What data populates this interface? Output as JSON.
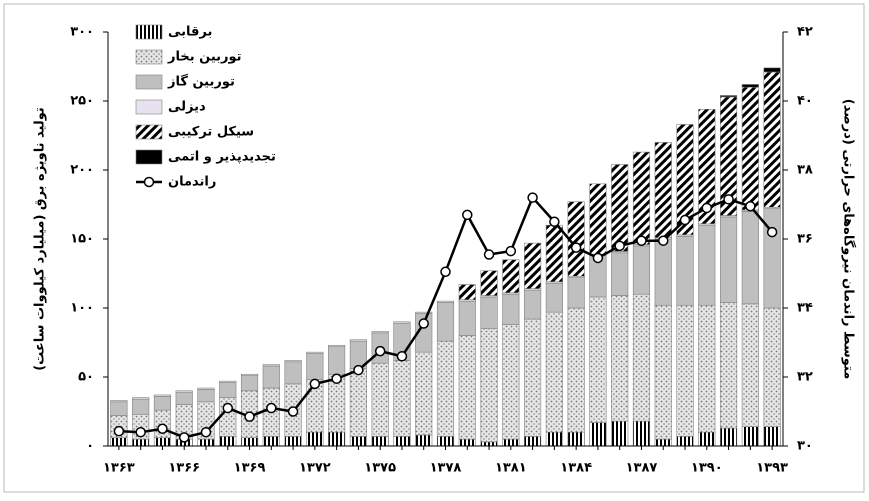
{
  "chart_data": {
    "type": "bar",
    "stacked": true,
    "x_label": null,
    "y_label": "تولید ناویژه برق (میلیارد کیلووات ساعت)",
    "y2_label": "متوسط راندمان نیروگاه‌های حرارتی (درصد)",
    "categories": [
      "۱۳۶۳",
      null,
      null,
      "۱۳۶۶",
      null,
      null,
      "۱۳۶۹",
      null,
      null,
      "۱۳۷۲",
      null,
      null,
      "۱۳۷۵",
      null,
      null,
      "۱۳۷۸",
      null,
      null,
      "۱۳۸۱",
      null,
      null,
      "۱۳۸۴",
      null,
      null,
      "۱۳۸۷",
      null,
      null,
      "۱۳۹۰",
      null,
      null,
      "۱۳۹۳"
    ],
    "series": [
      {
        "name": "برقابی",
        "color": "#000000",
        "values": [
          6,
          5,
          6,
          5,
          5,
          7,
          6,
          7,
          7,
          10,
          10,
          7,
          7,
          7,
          8,
          7,
          5,
          3,
          5,
          7,
          10,
          10,
          17,
          18,
          18,
          5,
          7,
          10,
          13,
          14,
          14
        ]
      },
      {
        "name": "توربین بخار",
        "color": "#a6a6a6",
        "values": [
          16,
          18,
          20,
          25,
          27,
          28,
          34,
          35,
          38,
          38,
          42,
          49,
          53,
          55,
          60,
          69,
          75,
          82,
          83,
          85,
          87,
          90,
          91,
          91,
          92,
          97,
          95,
          92,
          91,
          89,
          86
        ]
      },
      {
        "name": "توربین گاز",
        "color": "#bfbfbf",
        "values": [
          10,
          11,
          10,
          9,
          9,
          11,
          11,
          16,
          16,
          19,
          20,
          20,
          22,
          27,
          28,
          28,
          25,
          23,
          22,
          21,
          21,
          22,
          30,
          31,
          35,
          48,
          50,
          58,
          62,
          67,
          72
        ]
      },
      {
        "name": "دیزلی",
        "color": "#e8e2f0",
        "values": [
          1,
          1,
          1,
          1,
          1,
          1,
          1,
          1,
          1,
          1,
          1,
          1,
          1,
          1,
          1,
          1,
          1,
          1,
          1,
          1,
          1,
          1,
          1,
          1,
          1,
          1,
          1,
          1,
          1,
          1,
          1
        ]
      },
      {
        "name": "سیکل ترکیبی",
        "color": "#000000",
        "values": [
          0,
          0,
          0,
          0,
          0,
          0,
          0,
          0,
          0,
          0,
          0,
          0,
          0,
          0,
          0,
          0,
          11,
          18,
          24,
          33,
          41,
          54,
          51,
          63,
          67,
          69,
          80,
          83,
          86,
          89,
          98
        ]
      },
      {
        "name": "تجدیدپذیر و اتمی",
        "color": "#000000",
        "values": [
          0,
          0,
          0,
          0,
          0,
          0,
          0,
          0,
          0,
          0,
          0,
          0,
          0,
          0,
          0,
          0,
          0,
          0,
          0,
          0,
          0,
          0,
          0,
          0,
          0,
          0,
          0,
          0,
          1,
          2,
          3
        ]
      },
      {
        "name": "راندمان",
        "color": "#000000",
        "type": "line",
        "axis": "y2",
        "values": [
          30.43,
          30.4,
          30.5,
          30.25,
          30.4,
          31.1,
          30.85,
          31.1,
          31.0,
          31.8,
          31.95,
          32.2,
          32.75,
          32.6,
          33.55,
          35.05,
          36.7,
          35.55,
          35.65,
          37.2,
          36.5,
          35.75,
          35.45,
          35.8,
          35.95,
          35.95,
          36.55,
          36.9,
          37.15,
          36.95,
          36.2
        ]
      }
    ],
    "ylim": [
      0,
      300
    ],
    "yticks": [
      {
        "value": 0,
        "label": "۰"
      },
      {
        "value": 50,
        "label": "۵۰"
      },
      {
        "value": 100,
        "label": "۱۰۰"
      },
      {
        "value": 150,
        "label": "۱۵۰"
      },
      {
        "value": 200,
        "label": "۲۰۰"
      },
      {
        "value": 250,
        "label": "۲۵۰"
      },
      {
        "value": 300,
        "label": "۳۰۰"
      }
    ],
    "y2lim": [
      30,
      42
    ],
    "y2ticks": [
      {
        "value": 30,
        "label": "۳۰"
      },
      {
        "value": 32,
        "label": "۳۲"
      },
      {
        "value": 34,
        "label": "۳۴"
      },
      {
        "value": 36,
        "label": "۳۶"
      },
      {
        "value": 38,
        "label": "۳۸"
      },
      {
        "value": 40,
        "label": "۴۰"
      },
      {
        "value": 42,
        "label": "۴۲"
      }
    ],
    "legend": "upper left",
    "grid": false
  }
}
